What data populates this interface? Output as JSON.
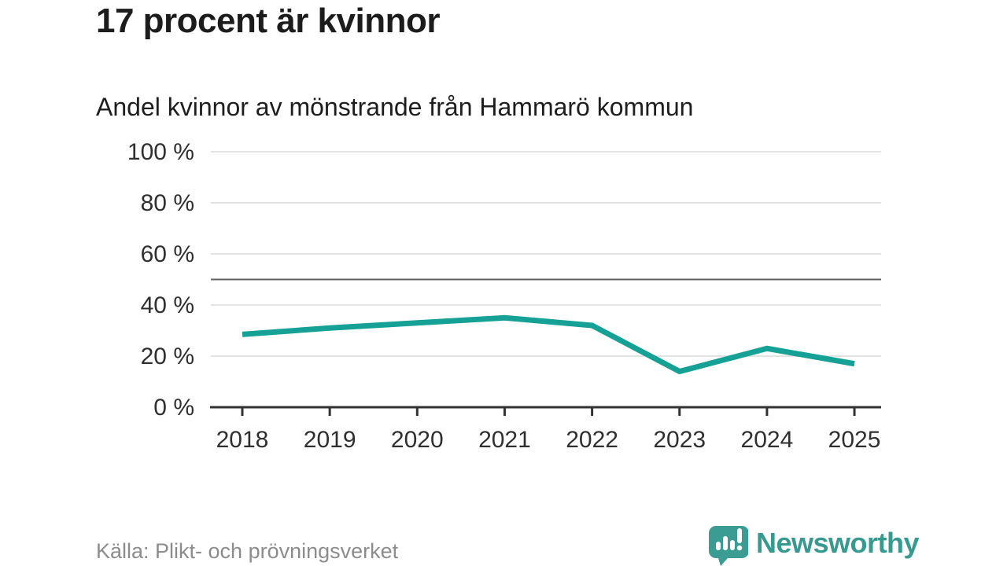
{
  "header": {
    "title": "17 procent är kvinnor",
    "subtitle": "Andel kvinnor av mönstrande från Hammarö kommun"
  },
  "footer": {
    "source": "Källa: Plikt- och prövningsverket",
    "brand": "Newsworthy",
    "brand_icon": "speech-bubble-bar-chart-exclamation"
  },
  "colors": {
    "line": "#15a195",
    "brand_teal": "#3a9c92",
    "grid": "#e3e3e3",
    "reference_line": "#616161",
    "axis": "#333333",
    "tick_text": "#2f2f2f",
    "title_text": "#1c1c1c",
    "source_text": "#8c8c8c"
  },
  "chart_data": {
    "type": "line",
    "title": "17 procent är kvinnor",
    "subtitle": "Andel kvinnor av mönstrande från Hammarö kommun",
    "x": [
      "2018",
      "2019",
      "2020",
      "2021",
      "2022",
      "2023",
      "2024",
      "2025"
    ],
    "series": [
      {
        "name": "Andel kvinnor av mönstrande",
        "values": [
          28.5,
          31,
          33,
          35,
          32,
          14,
          23,
          17
        ]
      }
    ],
    "xlabel": "",
    "ylabel": "",
    "ylim": [
      0,
      100
    ],
    "yticks": [
      0,
      20,
      40,
      60,
      80,
      100
    ],
    "ytick_format": "{v} %",
    "reference_line": 50,
    "grid": true,
    "legend": false,
    "unit": "%"
  }
}
